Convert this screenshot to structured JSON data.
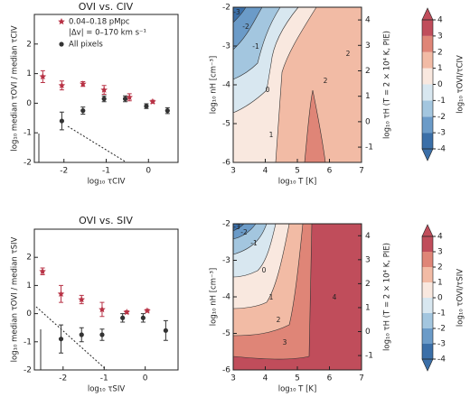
{
  "chart_data": [
    {
      "type": "scatter",
      "title": "OVI vs. CIV",
      "xlabel": "log₁₀ τCIV",
      "ylabel": "log₁₀ median τOVI / median τCIV",
      "xlim": [
        -2.7,
        0.7
      ],
      "xticks": [
        -2,
        -1,
        0
      ],
      "ylim": [
        -2,
        3
      ],
      "yticks": [
        -2,
        -1,
        0,
        1,
        2
      ],
      "annotation": "|Δv| = 0–170 km s⁻¹",
      "series": [
        {
          "name": "0.04–0.18 pMpc",
          "color": "#b83245",
          "marker": "star",
          "x": [
            -2.5,
            -2.05,
            -1.55,
            -1.05,
            -0.45,
            0.1
          ],
          "values": [
            0.9,
            0.6,
            0.65,
            0.45,
            0.2,
            0.05
          ],
          "errors": [
            0.2,
            0.15,
            0.08,
            0.15,
            0.12,
            0.05
          ]
        },
        {
          "name": "All pixels",
          "color": "#333333",
          "marker": "circle",
          "x": [
            -2.05,
            -1.55,
            -1.05,
            -0.55,
            -0.05,
            0.45
          ],
          "values": [
            -0.6,
            -0.25,
            0.15,
            0.15,
            -0.1,
            -0.25
          ],
          "errors": [
            0.3,
            0.12,
            0.1,
            0.1,
            0.08,
            0.1
          ]
        }
      ]
    },
    {
      "type": "contour",
      "xlabel": "log₁₀ T [K]",
      "ylabel": "log₁₀ nH [cm⁻³]",
      "y2label": "log₁₀ τH (T = 2 × 10⁴ K, PIE)",
      "xlim": [
        3,
        7
      ],
      "xticks": [
        3,
        4,
        5,
        6,
        7
      ],
      "ylim": [
        -6,
        -2
      ],
      "yticks": [
        -6,
        -5,
        -4,
        -3,
        -2
      ],
      "y2lim": [
        -1.6,
        4.5
      ],
      "y2ticks": [
        -1,
        0,
        1,
        2,
        3,
        4
      ],
      "contour_labels": [
        -3,
        -2,
        -1,
        0,
        1,
        2,
        2
      ],
      "colorbar": {
        "label": "log₁₀ τOVI/τCIV",
        "lim": [
          -4,
          4
        ],
        "ticks": [
          -4,
          -3,
          -2,
          -1,
          0,
          1,
          2,
          3,
          4
        ],
        "colors": [
          "#3b6fa8",
          "#6b9bc8",
          "#a3c6df",
          "#d8e7f0",
          "#f9e8df",
          "#f2bba5",
          "#df8577",
          "#c04d5b"
        ]
      }
    },
    {
      "type": "scatter",
      "title": "OVI vs. SIV",
      "xlabel": "log₁₀ τSIV",
      "ylabel": "log₁₀ median τOVI / median τSIV",
      "xlim": [
        -2.7,
        0.8
      ],
      "xticks": [
        -2,
        -1,
        0
      ],
      "ylim": [
        -2,
        3
      ],
      "yticks": [
        -2,
        -1,
        0,
        1,
        2
      ],
      "series": [
        {
          "color": "#b83245",
          "marker": "star",
          "x": [
            -2.5,
            -2.05,
            -1.55,
            -1.05,
            -0.45,
            0.05
          ],
          "values": [
            1.5,
            0.7,
            0.5,
            0.15,
            0.05,
            0.1
          ],
          "errors": [
            0.12,
            0.3,
            0.15,
            0.25,
            0.05,
            0.05
          ]
        },
        {
          "color": "#333333",
          "marker": "circle",
          "x": [
            -2.05,
            -1.55,
            -1.05,
            -0.55,
            -0.05,
            0.5
          ],
          "values": [
            -0.9,
            -0.75,
            -0.75,
            -0.15,
            -0.15,
            -0.6
          ],
          "errors": [
            0.5,
            0.25,
            0.2,
            0.15,
            0.15,
            0.35
          ]
        }
      ]
    },
    {
      "type": "contour",
      "xlabel": "log₁₀ T [K]",
      "ylabel": "log₁₀ nH [cm⁻³]",
      "y2label": "log₁₀ τH (T = 2 × 10⁴ K, PIE)",
      "xlim": [
        3,
        7
      ],
      "xticks": [
        3,
        4,
        5,
        6,
        7
      ],
      "ylim": [
        -6,
        -2
      ],
      "yticks": [
        -6,
        -5,
        -4,
        -3,
        -2
      ],
      "y2lim": [
        -1.6,
        4.5
      ],
      "y2ticks": [
        -1,
        0,
        1,
        2,
        3,
        4
      ],
      "contour_labels": [
        -3,
        -2,
        -1,
        0,
        1,
        2,
        3,
        4
      ],
      "colorbar": {
        "label": "log₁₀ τOVI/τSIV",
        "lim": [
          -4,
          4
        ],
        "ticks": [
          -4,
          -3,
          -2,
          -1,
          0,
          1,
          2,
          3,
          4
        ],
        "colors": [
          "#3b6fa8",
          "#6b9bc8",
          "#a3c6df",
          "#d8e7f0",
          "#f9e8df",
          "#f2bba5",
          "#df8577",
          "#c04d5b"
        ]
      }
    }
  ]
}
